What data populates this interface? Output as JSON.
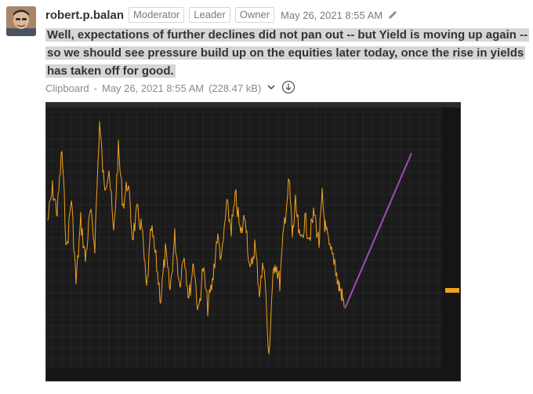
{
  "post": {
    "author": "robert.p.balan",
    "badges": [
      "Moderator",
      "Leader",
      "Owner"
    ],
    "timestamp": "May 26, 2021 8:55 AM",
    "message": "Well, expectations of further declines did not pan out -- but Yield is moving up again -- so we should see pressure build up on the equities later today, once the rise in yields has taken off for good."
  },
  "attachment": {
    "source": "Clipboard",
    "separator": "-",
    "timestamp": "May 26, 2021 8:55 AM",
    "size": "(228.47 kB)"
  },
  "colors": {
    "price_line": "#f2a01e",
    "projection": "#9d4fb5",
    "chart_bg": "#1b1b1b",
    "grid": "#333333"
  }
}
